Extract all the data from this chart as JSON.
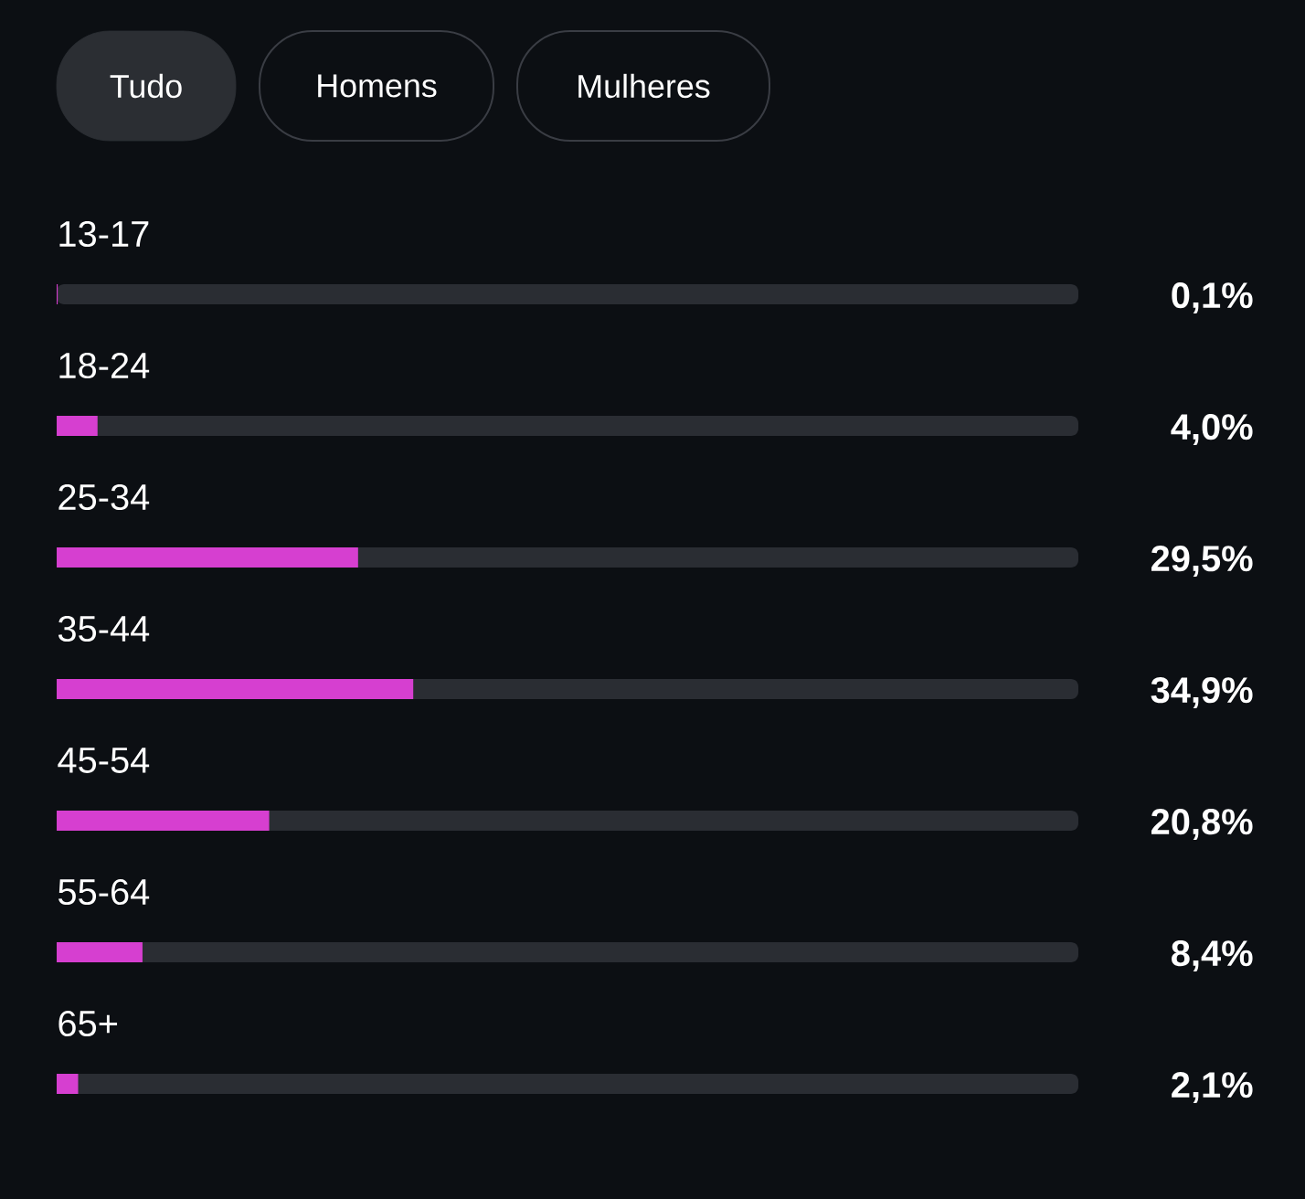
{
  "chart_data": {
    "type": "bar",
    "orientation": "horizontal",
    "categories": [
      "13-17",
      "18-24",
      "25-34",
      "35-44",
      "45-54",
      "55-64",
      "65+"
    ],
    "values": [
      0.1,
      4.0,
      29.5,
      34.9,
      20.8,
      8.4,
      2.1
    ],
    "value_labels": [
      "0,1%",
      "4,0%",
      "29,5%",
      "34,9%",
      "20,8%",
      "8,4%",
      "2,1%"
    ],
    "color": "#d63fd0",
    "xlim": [
      0,
      100
    ],
    "tick_labels": "y",
    "annotations": [
      "Tudo",
      "Homens",
      "Mulheres"
    ]
  }
}
